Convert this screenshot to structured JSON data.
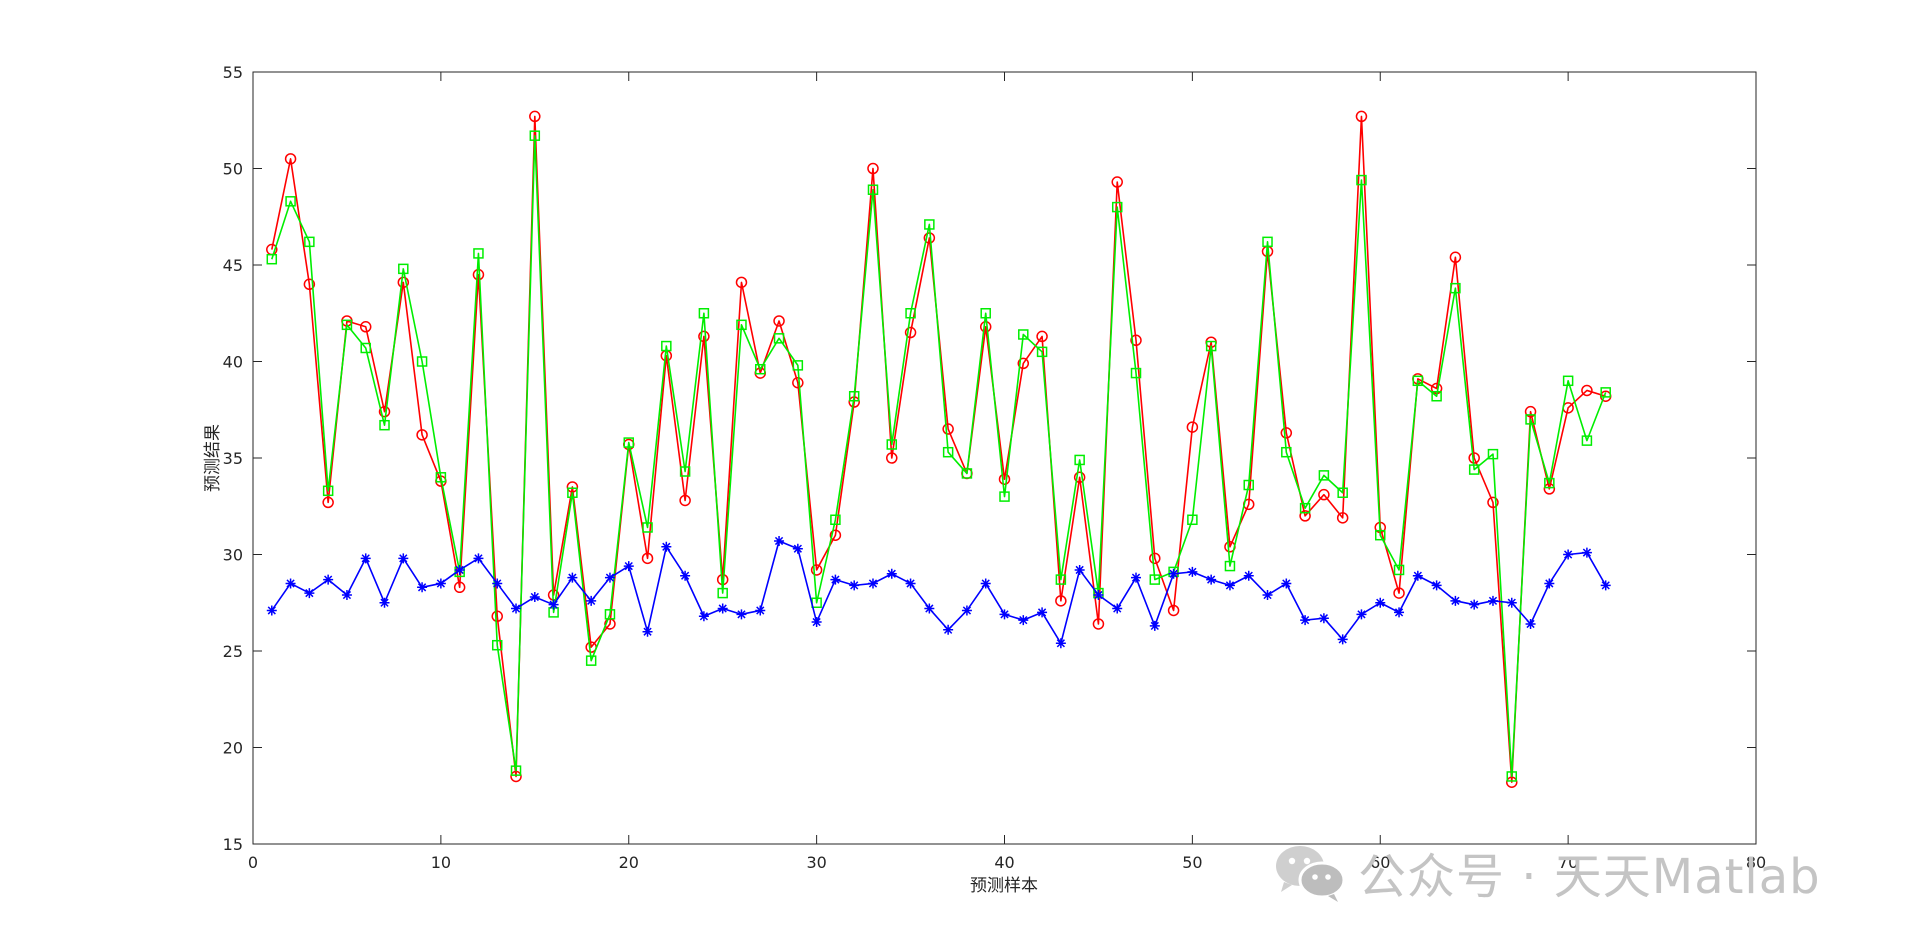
{
  "chart_data": {
    "type": "line",
    "title": "",
    "xlabel": "预测样本",
    "ylabel": "预测结果",
    "xlim": [
      0,
      80
    ],
    "ylim": [
      15,
      55
    ],
    "xticks": [
      0,
      10,
      20,
      30,
      40,
      50,
      60,
      70,
      80
    ],
    "yticks": [
      15,
      20,
      25,
      30,
      35,
      40,
      45,
      50,
      55
    ],
    "grid": false,
    "legend": "none",
    "x": [
      1,
      2,
      3,
      4,
      5,
      6,
      7,
      8,
      9,
      10,
      11,
      12,
      13,
      14,
      15,
      16,
      17,
      18,
      19,
      20,
      21,
      22,
      23,
      24,
      25,
      26,
      27,
      28,
      29,
      30,
      31,
      32,
      33,
      34,
      35,
      36,
      37,
      38,
      39,
      40,
      41,
      42,
      43,
      44,
      45,
      46,
      47,
      48,
      49,
      50,
      51,
      52,
      53,
      54,
      55,
      56,
      57,
      58,
      59,
      60,
      61,
      62,
      63,
      64,
      65,
      66,
      67,
      68,
      69,
      70,
      71,
      72
    ],
    "series": [
      {
        "color": "#ff0000",
        "marker": "circle",
        "values": [
          45.8,
          50.5,
          44.0,
          32.7,
          42.1,
          41.8,
          37.4,
          44.1,
          36.2,
          33.8,
          28.3,
          44.5,
          26.8,
          18.5,
          52.7,
          27.9,
          33.5,
          25.2,
          26.4,
          35.7,
          29.8,
          40.3,
          32.8,
          41.3,
          28.7,
          44.1,
          39.4,
          42.1,
          38.9,
          29.2,
          31.0,
          37.9,
          50.0,
          35.0,
          41.5,
          46.4,
          36.5,
          34.2,
          41.8,
          33.9,
          39.9,
          41.3,
          27.6,
          34.0,
          26.4,
          49.3,
          41.1,
          29.8,
          27.1,
          36.6,
          41.0,
          30.4,
          32.6,
          45.7,
          36.3,
          32.0,
          33.1,
          31.9,
          52.7,
          31.4,
          28.0,
          39.1,
          38.6,
          45.4,
          35.0,
          32.7,
          18.2,
          37.4,
          33.4,
          37.6,
          38.5,
          38.2
        ]
      },
      {
        "color": "#00ee00",
        "marker": "square",
        "values": [
          45.3,
          48.3,
          46.2,
          33.3,
          41.9,
          40.7,
          36.7,
          44.8,
          40.0,
          34.0,
          29.1,
          45.6,
          25.3,
          18.8,
          51.7,
          27.0,
          33.2,
          24.5,
          26.9,
          35.8,
          31.4,
          40.8,
          34.3,
          42.5,
          28.0,
          41.9,
          39.6,
          41.2,
          39.8,
          27.5,
          31.8,
          38.2,
          48.9,
          35.7,
          42.5,
          47.1,
          35.3,
          34.2,
          42.5,
          33.0,
          41.4,
          40.5,
          28.7,
          34.9,
          28.0,
          48.0,
          39.4,
          28.7,
          29.1,
          31.8,
          40.8,
          29.4,
          33.6,
          46.2,
          35.3,
          32.4,
          34.1,
          33.2,
          49.4,
          31.0,
          29.2,
          39.0,
          38.2,
          43.8,
          34.4,
          35.2,
          18.5,
          37.0,
          33.7,
          39.0,
          35.9,
          38.4
        ]
      },
      {
        "color": "#0000ff",
        "marker": "asterisk",
        "values": [
          27.1,
          28.5,
          28.0,
          28.7,
          27.9,
          29.8,
          27.5,
          29.8,
          28.3,
          28.5,
          29.2,
          29.8,
          28.5,
          27.2,
          27.8,
          27.4,
          28.8,
          27.6,
          28.8,
          29.4,
          26.0,
          30.4,
          28.9,
          26.8,
          27.2,
          26.9,
          27.1,
          30.7,
          30.3,
          26.5,
          28.7,
          28.4,
          28.5,
          29.0,
          28.5,
          27.2,
          26.1,
          27.1,
          28.5,
          26.9,
          26.6,
          27.0,
          25.4,
          29.2,
          27.9,
          27.2,
          28.8,
          26.3,
          29.0,
          29.1,
          28.7,
          28.4,
          28.9,
          27.9,
          28.5,
          26.6,
          26.7,
          25.6,
          26.9,
          27.5,
          27.0,
          28.9,
          28.4,
          27.6,
          27.4,
          27.6,
          27.5,
          26.4,
          28.5,
          30.0,
          30.1,
          28.4
        ]
      }
    ]
  },
  "watermark": {
    "icon": "wechat-icon",
    "text": "公众号 · 天天Matlab"
  }
}
